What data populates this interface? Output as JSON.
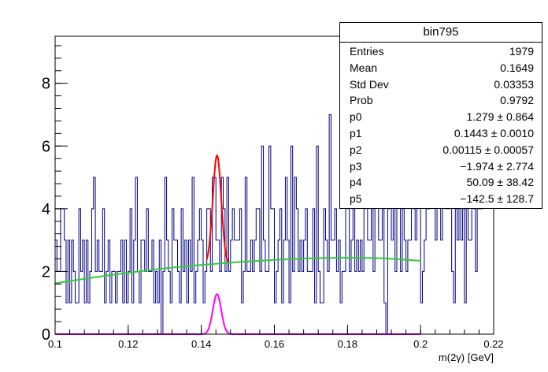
{
  "chart_data": {
    "type": "histogram-fit",
    "title": "",
    "xlabel": "m(2γ) [GeV]",
    "ylabel": "",
    "xlim": [
      0.1,
      0.22
    ],
    "ylim": [
      0,
      9.5
    ],
    "x_ticks": [
      {
        "value": 0.1,
        "label": "0.1"
      },
      {
        "value": 0.12,
        "label": "0.12"
      },
      {
        "value": 0.14,
        "label": "0.14"
      },
      {
        "value": 0.16,
        "label": "0.16"
      },
      {
        "value": 0.18,
        "label": "0.18"
      },
      {
        "value": 0.2,
        "label": "0.2"
      },
      {
        "value": 0.22,
        "label": "0.22"
      }
    ],
    "y_ticks": [
      {
        "value": 0,
        "label": "0"
      },
      {
        "value": 2,
        "label": "2"
      },
      {
        "value": 4,
        "label": "4"
      },
      {
        "value": 6,
        "label": "6"
      },
      {
        "value": 8,
        "label": "8"
      }
    ],
    "histogram": {
      "color": "#000080",
      "bin_width": 0.0005,
      "x_start": 0.1,
      "values": [
        3,
        2,
        2,
        4,
        4,
        3,
        1,
        3,
        1,
        3,
        2,
        1,
        1,
        4,
        2,
        3,
        1,
        3,
        1,
        2,
        4,
        5,
        2,
        3,
        2,
        2,
        4,
        1,
        2,
        3,
        1,
        2,
        2,
        1,
        2,
        2,
        3,
        1,
        3,
        1,
        2,
        4,
        1,
        3,
        5,
        2,
        1,
        3,
        3,
        2,
        4,
        2,
        2,
        3,
        1,
        2,
        1,
        3,
        0,
        2,
        5,
        3,
        2,
        1,
        4,
        3,
        3,
        2,
        1,
        4,
        2,
        3,
        1,
        3,
        2,
        5,
        1,
        2,
        3,
        4,
        3,
        1,
        2,
        4,
        4,
        2,
        5,
        5,
        3,
        3,
        2,
        5,
        4,
        2,
        5,
        2,
        3,
        4,
        3,
        3,
        3,
        4,
        1,
        2,
        5,
        2,
        2,
        3,
        2,
        3,
        4,
        4,
        2,
        6,
        3,
        2,
        2,
        6,
        4,
        4,
        1,
        2,
        3,
        4,
        1,
        3,
        5,
        3,
        1,
        6,
        2,
        5,
        4,
        2,
        3,
        2,
        3,
        4,
        2,
        2,
        2,
        4,
        1,
        6,
        2,
        1,
        1,
        4,
        3,
        2,
        7,
        3,
        3,
        4,
        2,
        3,
        1,
        2,
        2,
        5,
        4,
        2,
        3,
        4,
        2,
        3,
        2,
        3,
        2,
        4,
        6,
        3,
        3,
        4,
        2,
        5,
        6,
        3,
        3,
        4,
        1,
        0,
        4,
        6,
        3,
        7,
        2,
        5,
        5,
        2,
        4,
        3,
        2,
        3,
        3,
        6,
        4,
        3,
        5,
        7,
        1,
        2,
        3,
        4,
        4,
        5,
        5,
        7,
        3,
        6,
        5,
        3,
        5,
        5,
        4,
        4,
        7,
        2,
        1,
        4,
        3,
        5,
        3,
        4,
        1,
        4,
        3,
        3,
        6,
        4,
        2,
        4,
        4,
        4
      ]
    },
    "series": [
      {
        "color": "#ff0000",
        "function": "gaussian",
        "x_range": [
          0.1415,
          0.1475
        ],
        "amplitude": 3.5,
        "mean": 0.1443,
        "sigma": 0.00115,
        "offset": 2.2
      },
      {
        "color": "#ff00ff",
        "function": "gaussian",
        "x_range": [
          0.1,
          0.2
        ],
        "amplitude": 1.279,
        "mean": 0.1443,
        "sigma": 0.00115,
        "offset": 0
      },
      {
        "color": "#33cc33",
        "function": "polynomial",
        "x_range": [
          0.1,
          0.2
        ],
        "points": [
          [
            0.1,
            1.62
          ],
          [
            0.11,
            1.8
          ],
          [
            0.12,
            1.96
          ],
          [
            0.13,
            2.1
          ],
          [
            0.14,
            2.21
          ],
          [
            0.15,
            2.3
          ],
          [
            0.16,
            2.37
          ],
          [
            0.17,
            2.42
          ],
          [
            0.18,
            2.44
          ],
          [
            0.19,
            2.42
          ],
          [
            0.2,
            2.34
          ]
        ]
      }
    ],
    "stats_box": {
      "title": "bin795",
      "rows": [
        {
          "name": "Entries",
          "value": "1979"
        },
        {
          "name": "Mean",
          "value": "0.1649"
        },
        {
          "name": "Std Dev",
          "value": "0.03353"
        },
        {
          "name": "Prob",
          "value": "0.9792"
        },
        {
          "name": "p0",
          "value": "1.279 ± 0.864"
        },
        {
          "name": "p1",
          "value": "0.1443 ± 0.0010"
        },
        {
          "name": "p2",
          "value": "0.00115 ± 0.00057"
        },
        {
          "name": "p3",
          "value": "−1.974 ± 2.774"
        },
        {
          "name": "p4",
          "value": "50.09 ± 38.42"
        },
        {
          "name": "p5",
          "value": "−142.5 ± 128.7"
        }
      ]
    }
  }
}
